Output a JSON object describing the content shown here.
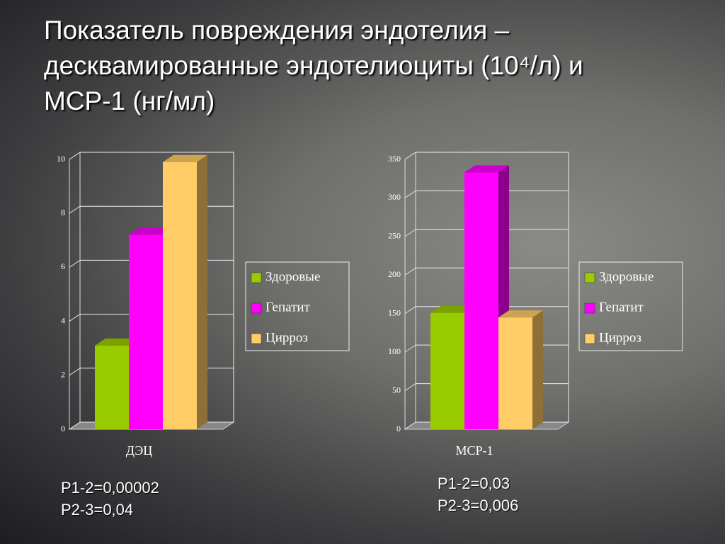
{
  "title": "Показатель повреждения эндотелия – десквамированные эндотелиоциты (10⁴/л) и МСР-1 (нг/мл)",
  "chart_data": [
    {
      "type": "bar3d",
      "x_label": "ДЭЦ",
      "series": [
        {
          "name": "Здоровые",
          "color": "#99cc00",
          "values": [
            3.1
          ]
        },
        {
          "name": "Гепатит",
          "color": "#ff00ff",
          "values": [
            7.2
          ]
        },
        {
          "name": "Цирроз",
          "color": "#ffcc66",
          "values": [
            9.9
          ]
        }
      ],
      "ylim": [
        0,
        10
      ],
      "yticks": [
        0,
        2,
        4,
        6,
        8,
        10
      ],
      "grid": true,
      "annotations": [
        "P1-2=0,00002",
        "P2-3=0,04"
      ]
    },
    {
      "type": "bar3d",
      "x_label": "МСР-1",
      "series": [
        {
          "name": "Здоровые",
          "color": "#99cc00",
          "values": [
            151
          ]
        },
        {
          "name": "Гепатит",
          "color": "#ff00ff",
          "values": [
            333
          ]
        },
        {
          "name": "Цирроз",
          "color": "#ffcc66",
          "values": [
            145
          ]
        }
      ],
      "ylim": [
        0,
        350
      ],
      "yticks": [
        0,
        50,
        100,
        150,
        200,
        250,
        300,
        350
      ],
      "grid": true,
      "annotations": [
        "P1-2=0,03",
        "P2-3=0,006"
      ]
    }
  ]
}
